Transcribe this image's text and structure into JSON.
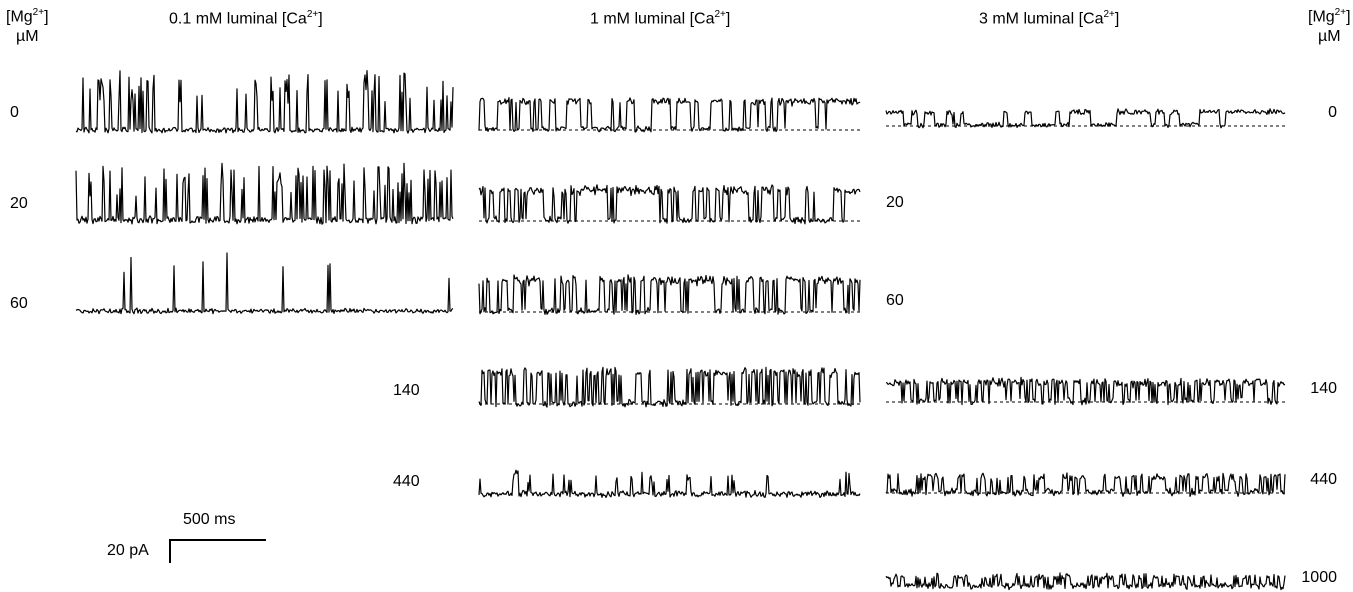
{
  "header_left": {
    "line1": "[Mg",
    "sup": "2+",
    "line1_end": "]",
    "line2": "µM"
  },
  "header_right": {
    "line1": "[Mg",
    "sup": "2+",
    "line1_end": "]",
    "line2": "µM"
  },
  "columns": [
    {
      "pre": "0.1 mM luminal [Ca",
      "sup": "2+",
      "post": "]"
    },
    {
      "pre": "1 mM luminal [Ca",
      "sup": "2+",
      "post": "]"
    },
    {
      "pre": "3 mM luminal [Ca",
      "sup": "2+",
      "post": "]"
    }
  ],
  "row_labels": {
    "col1": [
      "0",
      "20",
      "60"
    ],
    "col2": [
      "140",
      "440"
    ],
    "col3_left": [
      "20",
      "60"
    ],
    "col3_right": [
      "0",
      "140",
      "440",
      "1000"
    ]
  },
  "scale_bar": {
    "time": "500 ms",
    "current": "20 pA"
  },
  "trace_color": "#000000"
}
